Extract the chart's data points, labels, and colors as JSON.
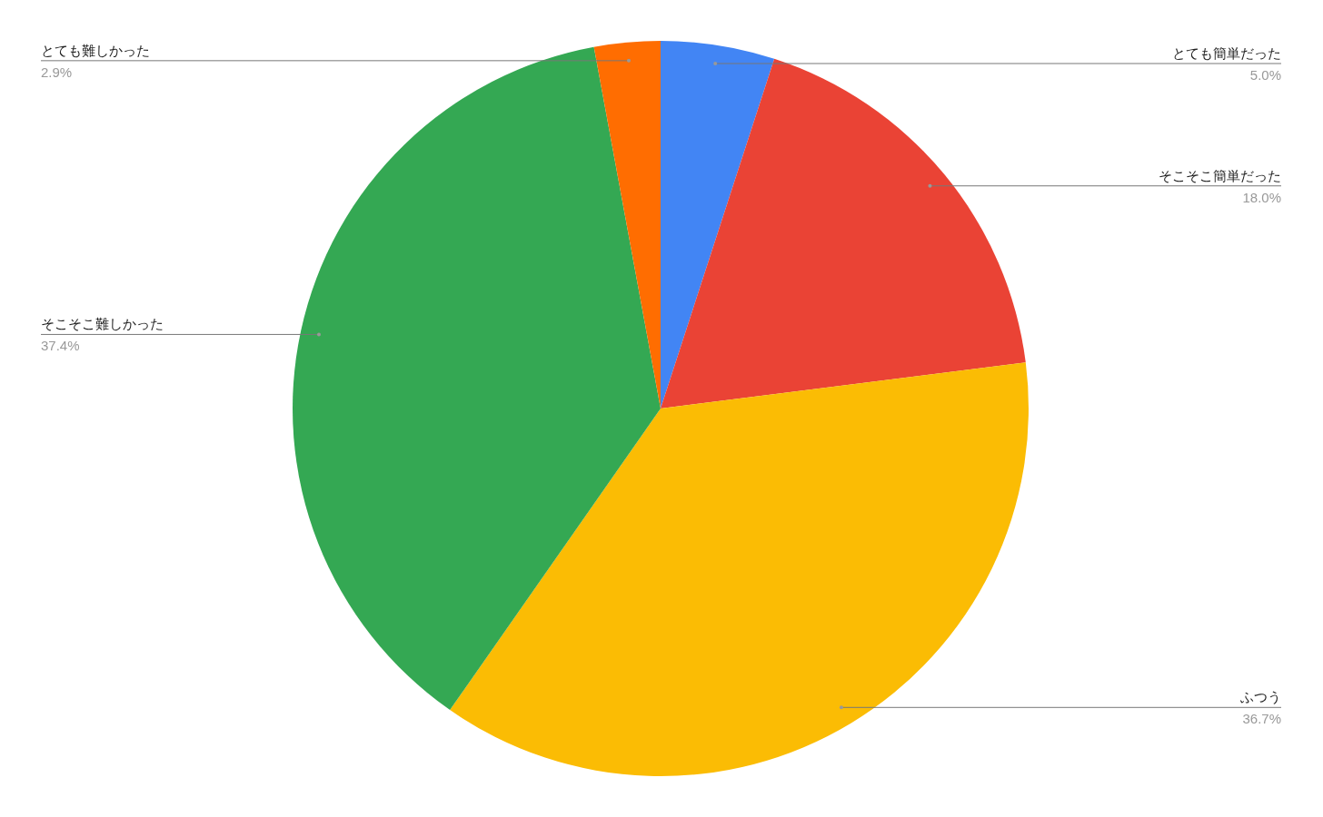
{
  "chart_data": {
    "type": "pie",
    "categories": [
      "とても簡単だった",
      "そこそこ簡単だった",
      "ふつう",
      "そこそこ難しかった",
      "とても難しかった"
    ],
    "values": [
      5.0,
      18.0,
      36.7,
      37.4,
      2.9
    ],
    "colors": [
      "#4285f4",
      "#ea4335",
      "#fbbc04",
      "#34a853",
      "#ff6d01"
    ],
    "value_labels": [
      "5.0%",
      "18.0%",
      "36.7%",
      "37.4%",
      "2.9%"
    ]
  }
}
